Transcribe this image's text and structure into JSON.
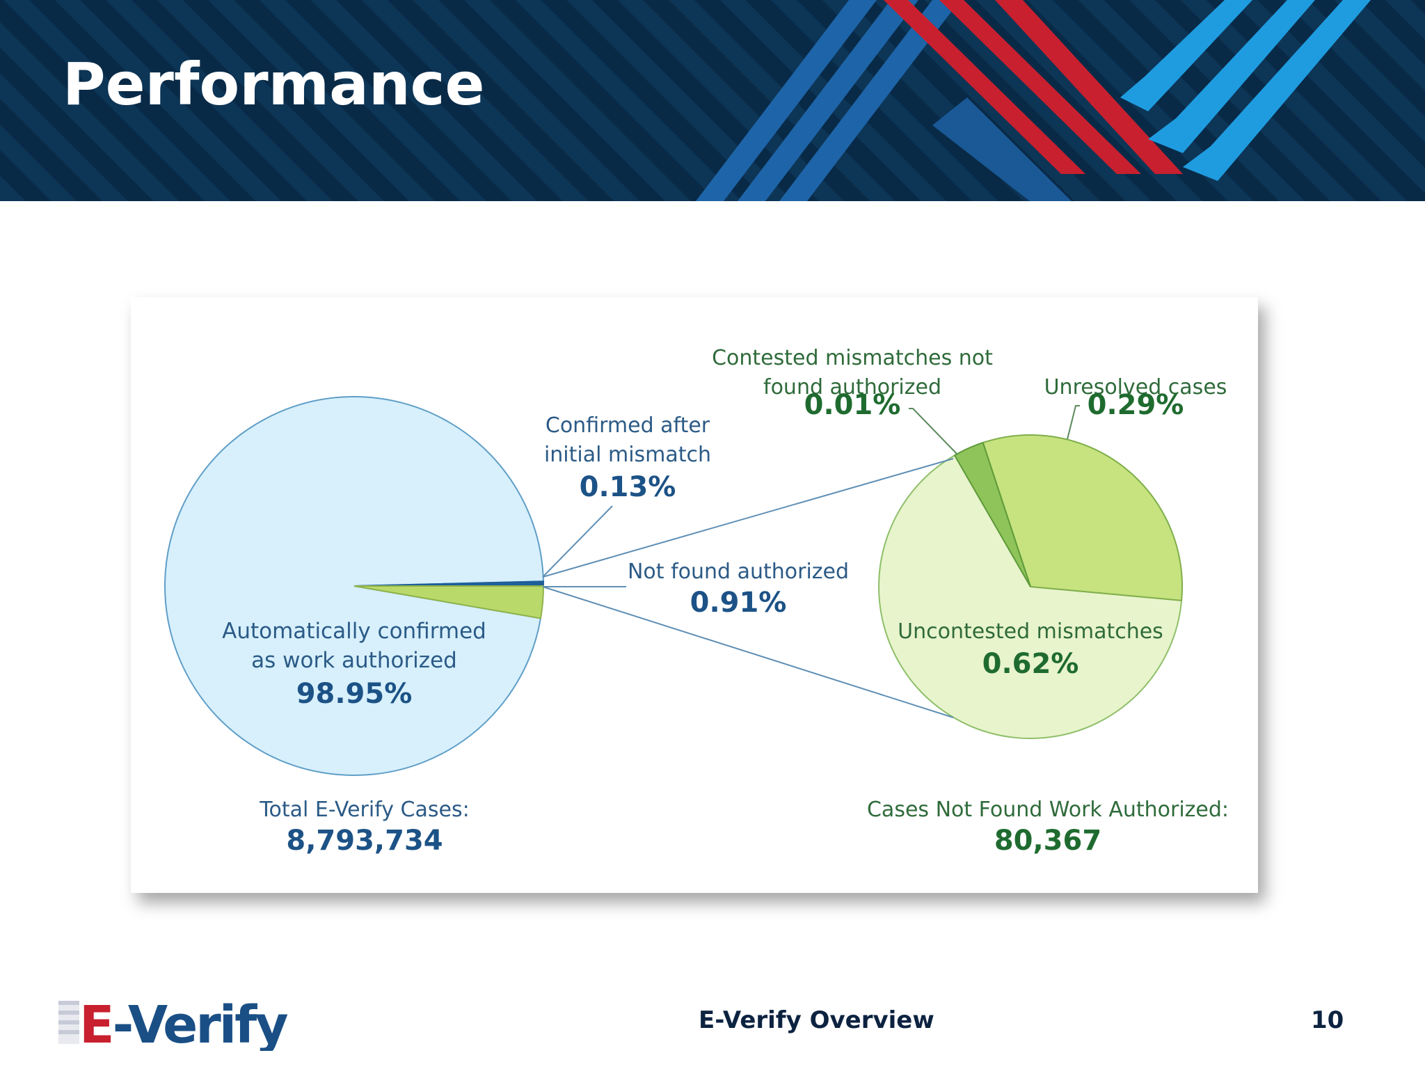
{
  "slide": {
    "title": "Performance",
    "footer_title": "E-Verify Overview",
    "page_number": "10",
    "logo_text": "E-Verify"
  },
  "colors": {
    "header_bg": "#0d3556",
    "stripe_blue": "#1e64a8",
    "stripe_red": "#c8202f",
    "stripe_light_blue": "#1f9ce0",
    "pie_light_blue": "#d7f0fc",
    "pie_blue_outline": "#5f9ec7",
    "pie_dark_blue": "#1f5f9a",
    "pie_green": "#b9da6a",
    "pie_light_green": "#e8f4cc",
    "pie_green_mid": "#c6e37f"
  },
  "chart_data": [
    {
      "type": "pie",
      "title": "",
      "slices": [
        {
          "label": "Automatically confirmed as work authorized",
          "value": 98.95,
          "display": "98.95%"
        },
        {
          "label": "Confirmed after initial mismatch",
          "value": 0.13,
          "display": "0.13%"
        },
        {
          "label": "Not found authorized",
          "value": 0.91,
          "display": "0.91%"
        }
      ],
      "total_label": "Total E-Verify Cases:",
      "total_value": "8,793,734"
    },
    {
      "type": "pie",
      "title": "",
      "slices": [
        {
          "label": "Uncontested mismatches",
          "value": 0.62,
          "display": "0.62%"
        },
        {
          "label": "Unresolved cases",
          "value": 0.29,
          "display": "0.29%"
        },
        {
          "label": "Contested mismatches not found authorized",
          "value": 0.01,
          "display": "0.01%"
        }
      ],
      "total_label": "Cases Not Found Work Authorized:",
      "total_value": "80,367"
    }
  ],
  "labels": {
    "auto_line1": "Automatically confirmed",
    "auto_line2": "as work authorized",
    "auto_value": "98.95%",
    "confirmed_line1": "Confirmed after",
    "confirmed_line2": "initial mismatch",
    "confirmed_value": "0.13%",
    "nfa_line1": "Not found authorized",
    "nfa_value": "0.91%",
    "contested_line1": "Contested mismatches not",
    "contested_line2": "found authorized",
    "contested_value": "0.01%",
    "unresolved_line1": "Unresolved cases",
    "unresolved_value": "0.29%",
    "uncontested_line1": "Uncontested mismatches",
    "uncontested_value": "0.62%"
  }
}
